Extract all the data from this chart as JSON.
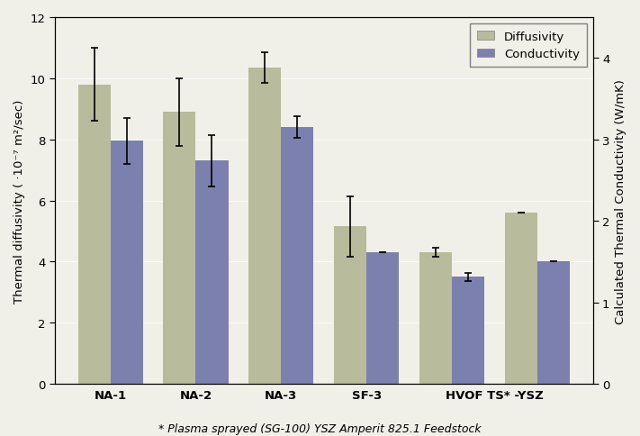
{
  "diffusivity_values": [
    9.8,
    8.9,
    10.35,
    5.15,
    4.3,
    5.6
  ],
  "conductivity_values": [
    7.95,
    7.3,
    8.4,
    4.3,
    3.5,
    4.0
  ],
  "diffusivity_errors": [
    1.2,
    1.1,
    0.5,
    1.0,
    0.15,
    0.0
  ],
  "conductivity_errors": [
    0.75,
    0.85,
    0.35,
    0.0,
    0.12,
    0.0
  ],
  "diffusivity_color": "#b8bb9c",
  "conductivity_color": "#7c80ae",
  "ylabel_left": "Thermal diffusivity ( ·10⁻⁷ m²/sec)",
  "ylabel_right": "Calculated Thermal Conductivity (W/mK)",
  "ylim_left": [
    0,
    12
  ],
  "ylim_right": [
    0,
    4.5
  ],
  "yticks_left": [
    0,
    2,
    4,
    6,
    8,
    10,
    12
  ],
  "yticks_right": [
    0,
    1,
    2,
    3,
    4
  ],
  "xtick_positions": [
    0,
    1,
    2,
    3,
    4.5
  ],
  "xtick_labels": [
    "NA-1",
    "NA-2",
    "NA-3",
    "SF-3",
    "HVOF TS* -YSZ"
  ],
  "group_x": [
    0,
    1,
    2,
    3,
    4,
    5
  ],
  "legend_labels": [
    "Diffusivity",
    "Conductivity"
  ],
  "footnote": "* Plasma sprayed (SG-100) YSZ Amperit 825.1 Feedstock",
  "bar_width": 0.38,
  "background_color": "#f0f0e8"
}
